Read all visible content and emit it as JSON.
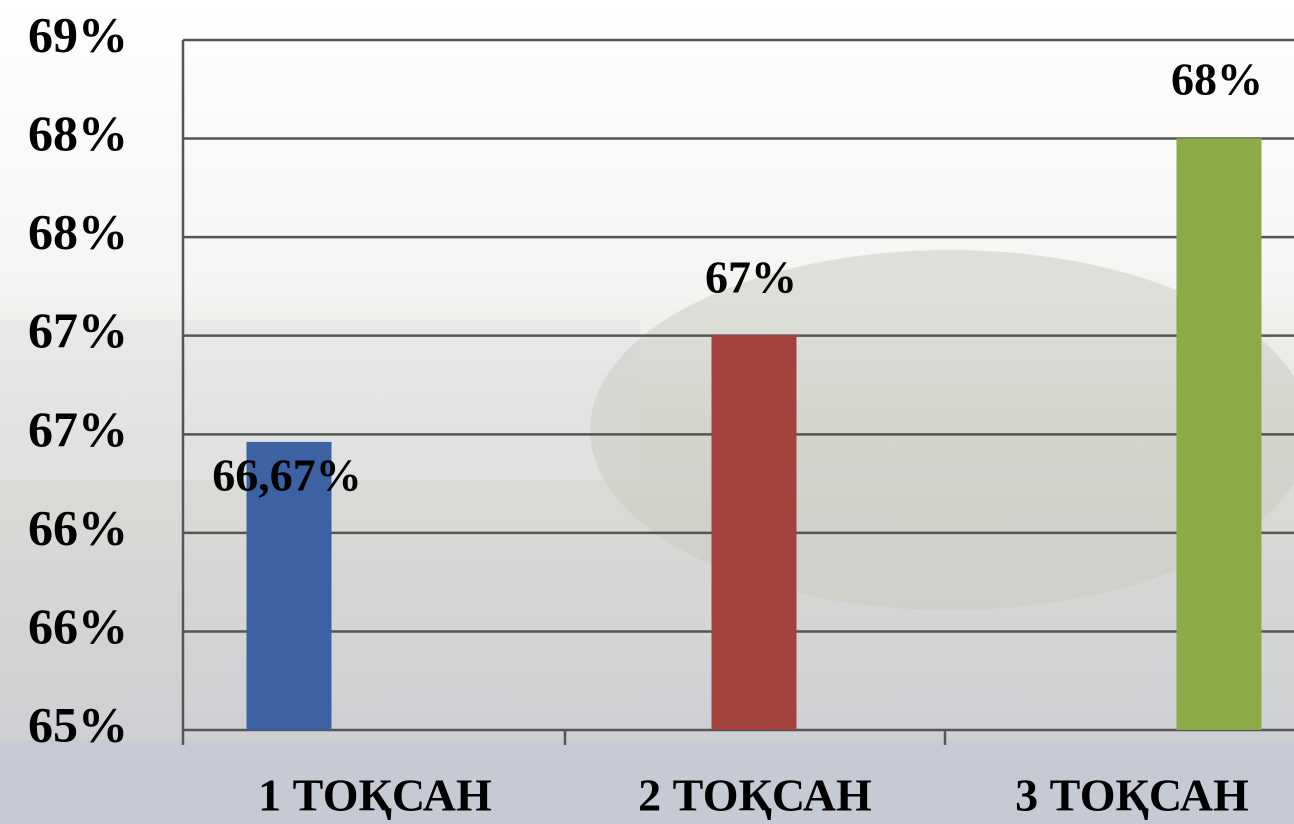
{
  "chart_data": {
    "type": "bar",
    "categories": [
      "1 ТОҚСАН",
      "2 ТОҚСАН",
      "3 ТОҚСАН"
    ],
    "values": [
      66.67,
      67.29,
      68.43
    ],
    "value_labels": [
      "66,67%",
      "67%",
      "68%"
    ],
    "colors": [
      "#3c62a3",
      "#a4433d",
      "#8aab48"
    ],
    "ylim": [
      65,
      69
    ],
    "yticks": [
      {
        "value": 65,
        "label": "65%"
      },
      {
        "value": 65.571,
        "label": "66%"
      },
      {
        "value": 66.143,
        "label": "66%"
      },
      {
        "value": 66.714,
        "label": "67%"
      },
      {
        "value": 67.286,
        "label": "67%"
      },
      {
        "value": 67.857,
        "label": "68%"
      },
      {
        "value": 68.429,
        "label": "68%"
      },
      {
        "value": 69,
        "label": "69%"
      }
    ],
    "grid": true
  }
}
